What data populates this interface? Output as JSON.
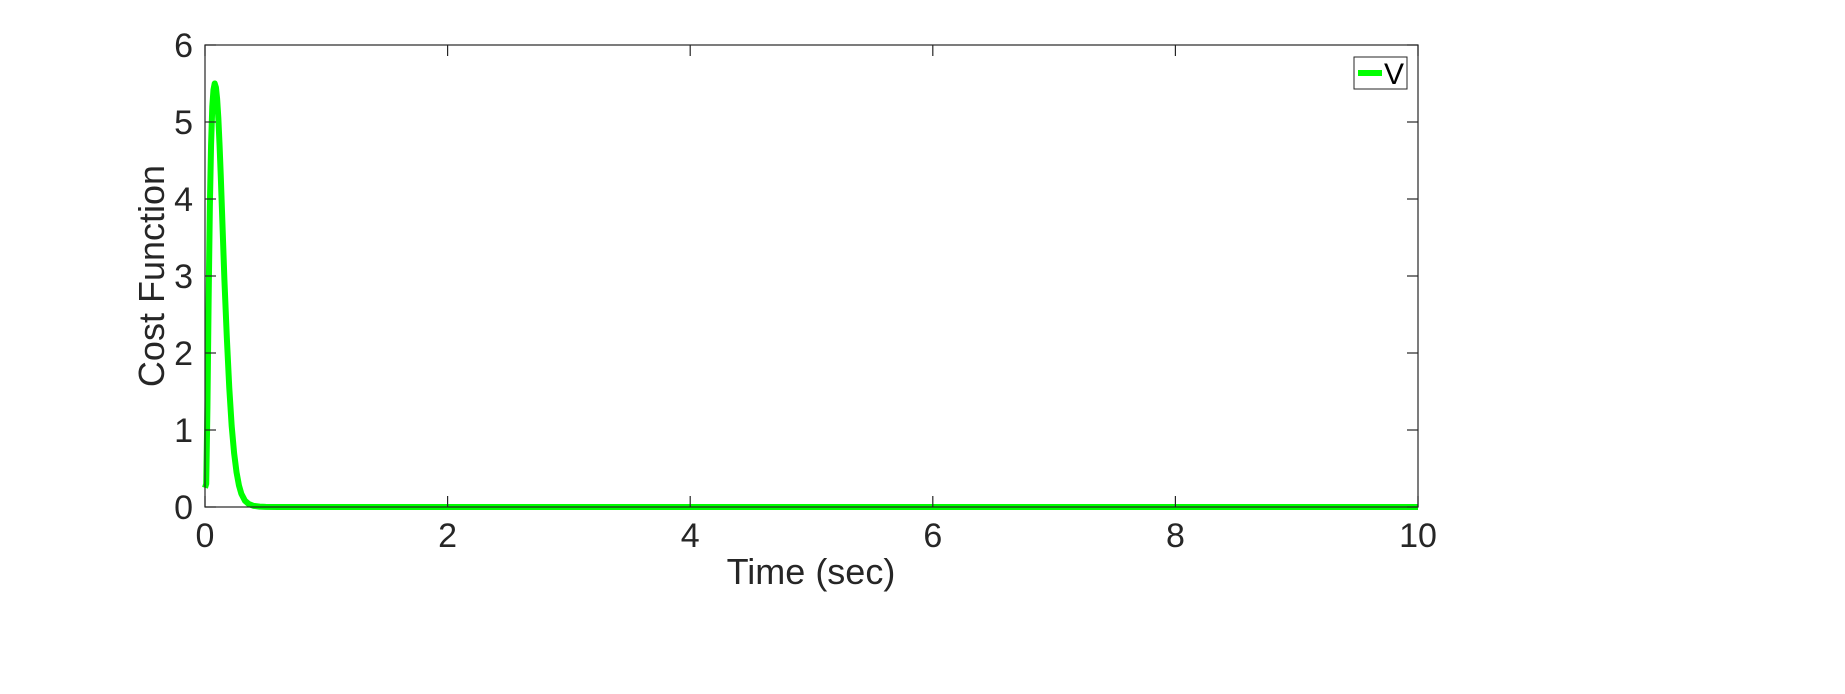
{
  "chart_data": {
    "type": "line",
    "title": "",
    "xlabel": "Time (sec)",
    "ylabel": "Cost Function",
    "xlim": [
      0,
      10
    ],
    "ylim": [
      0,
      6
    ],
    "xticks": [
      0,
      2,
      4,
      6,
      8,
      10
    ],
    "yticks": [
      0,
      1,
      2,
      3,
      4,
      5,
      6
    ],
    "grid": false,
    "legend": {
      "position": "top-right",
      "entries": [
        "V"
      ]
    },
    "series": [
      {
        "name": "V",
        "color": "#00ff00",
        "x": [
          0,
          0.01,
          0.02,
          0.03,
          0.04,
          0.05,
          0.06,
          0.07,
          0.08,
          0.09,
          0.1,
          0.11,
          0.12,
          0.13,
          0.14,
          0.15,
          0.16,
          0.18,
          0.2,
          0.22,
          0.24,
          0.26,
          0.28,
          0.3,
          0.33,
          0.36,
          0.4,
          0.45,
          0.5,
          0.6,
          0.8,
          1,
          2,
          3,
          4,
          5,
          6,
          7,
          8,
          9,
          10
        ],
        "y": [
          0.25,
          0.3,
          1.3,
          2.7,
          3.9,
          4.7,
          5.2,
          5.42,
          5.5,
          5.45,
          5.3,
          5.05,
          4.7,
          4.3,
          3.85,
          3.4,
          2.95,
          2.2,
          1.55,
          1.05,
          0.7,
          0.45,
          0.28,
          0.17,
          0.08,
          0.04,
          0.015,
          0.005,
          0.002,
          0,
          0,
          0,
          0,
          0,
          0,
          0,
          0,
          0,
          0,
          0,
          0
        ]
      }
    ]
  }
}
